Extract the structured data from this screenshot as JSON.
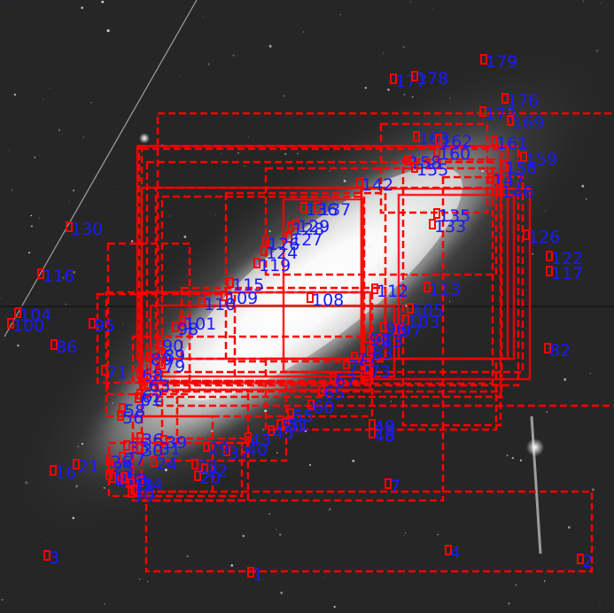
{
  "overlay": {
    "box_color": "#ff0000",
    "label_color": "#1a1aff",
    "labels": [
      "1",
      "2",
      "3",
      "4",
      "7",
      "16",
      "21",
      "48",
      "45",
      "82",
      "86",
      "95",
      "100",
      "104",
      "116",
      "130",
      "117",
      "122",
      "126",
      "179",
      "177",
      "178",
      "176",
      "172",
      "169",
      "163",
      "162",
      "161",
      "160",
      "158",
      "159",
      "156",
      "155",
      "147",
      "146",
      "142",
      "137",
      "136",
      "135",
      "133",
      "129",
      "128",
      "127",
      "126",
      "124",
      "119",
      "115",
      "113",
      "112",
      "110",
      "109",
      "108",
      "105",
      "103",
      "101",
      "98",
      "97",
      "96",
      "93",
      "92",
      "90",
      "89",
      "83",
      "80",
      "79",
      "77",
      "75",
      "73",
      "71",
      "68",
      "67",
      "65",
      "63",
      "62",
      "61",
      "60",
      "58",
      "56",
      "55",
      "51",
      "50",
      "49",
      "48",
      "45",
      "43",
      "40",
      "39",
      "37",
      "36",
      "35",
      "31",
      "30",
      "29",
      "27",
      "26",
      "25",
      "24",
      "23",
      "22",
      "20",
      "19",
      "18",
      "17",
      "15",
      "14",
      "13",
      "12",
      "11",
      "10",
      "8",
      "6",
      "5"
    ]
  }
}
